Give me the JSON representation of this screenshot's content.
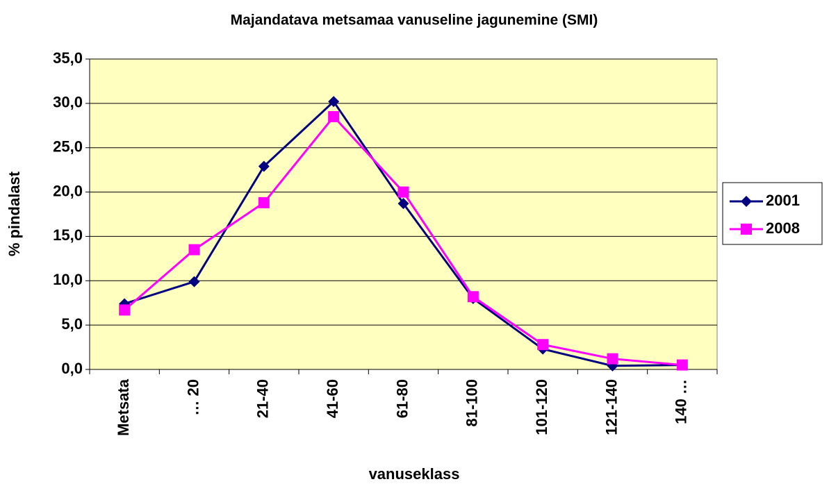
{
  "chart_data": {
    "type": "line",
    "title": "Majandatava metsamaa vanuseline jagunemine (SMI)",
    "x_label": "vanuseklass",
    "y_label": "% pindalast",
    "categories": [
      "Metsata",
      "… 20",
      "21-40",
      "41-60",
      "61-80",
      "81-100",
      "101-120",
      "121-140",
      "140 …"
    ],
    "series": [
      {
        "name": "2001",
        "color": "#000080",
        "marker": "diamond",
        "values": [
          7.4,
          9.9,
          22.9,
          30.2,
          18.7,
          8.0,
          2.3,
          0.4,
          0.5
        ]
      },
      {
        "name": "2008",
        "color": "#ff00ff",
        "marker": "square",
        "values": [
          6.7,
          13.5,
          18.8,
          28.5,
          20.0,
          8.2,
          2.8,
          1.2,
          0.5
        ]
      }
    ],
    "ylim": [
      0,
      35
    ],
    "yticks": [
      {
        "value": 0,
        "label": "0,0"
      },
      {
        "value": 5,
        "label": "5,0"
      },
      {
        "value": 10,
        "label": "10,0"
      },
      {
        "value": 15,
        "label": "15,0"
      },
      {
        "value": 20,
        "label": "20,0"
      },
      {
        "value": 25,
        "label": "25,0"
      },
      {
        "value": 30,
        "label": "30,0"
      },
      {
        "value": 35,
        "label": "35,0"
      }
    ],
    "grid": true,
    "plot_background": "#ffffc0",
    "legend": "right"
  }
}
